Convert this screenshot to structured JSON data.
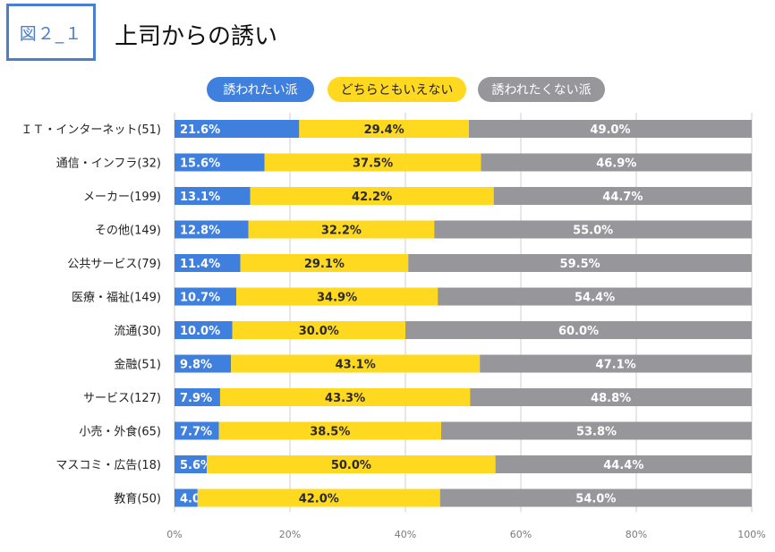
{
  "header": {
    "figure_label": "図２_１",
    "title": "上司からの誘い"
  },
  "colors": {
    "invited": "#3f7fde",
    "neutral": "#ffd820",
    "not_invited": "#97979b",
    "grid": "#cfcfcf",
    "badge": "#4a7fd0"
  },
  "chart_data": {
    "type": "bar",
    "orientation": "horizontal",
    "stacked": true,
    "percent": true,
    "title": "上司からの誘い",
    "xlim": [
      0,
      100
    ],
    "xticks": [
      "0%",
      "20%",
      "40%",
      "60%",
      "80%",
      "100%"
    ],
    "grid": true,
    "legend_position": "top",
    "categories": [
      "ＩＴ・インターネット(51)",
      "通信・インフラ(32)",
      "メーカー(199)",
      "その他(149)",
      "公共サービス(79)",
      "医療・福祉(149)",
      "流通(30)",
      "金融(51)",
      "サービス(127)",
      "小売・外食(65)",
      "マスコミ・広告(18)",
      "教育(50)"
    ],
    "series": [
      {
        "name": "誘われたい派",
        "values": [
          21.6,
          15.6,
          13.1,
          12.8,
          11.4,
          10.7,
          10.0,
          9.8,
          7.9,
          7.7,
          5.6,
          4.0
        ],
        "labels": [
          "21.6%",
          "15.6%",
          "13.1%",
          "12.8%",
          "11.4%",
          "10.7%",
          "10.0%",
          "9.8%",
          "7.9%",
          "7.7%",
          "5.6%",
          "4.0%"
        ]
      },
      {
        "name": "どちらともいえない",
        "values": [
          29.4,
          37.5,
          42.2,
          32.2,
          29.1,
          34.9,
          30.0,
          43.1,
          43.3,
          38.5,
          50.0,
          42.0
        ],
        "labels": [
          "29.4%",
          "37.5%",
          "42.2%",
          "32.2%",
          "29.1%",
          "34.9%",
          "30.0%",
          "43.1%",
          "43.3%",
          "38.5%",
          "50.0%",
          "42.0%"
        ]
      },
      {
        "name": "誘われたくない派",
        "values": [
          49.0,
          46.9,
          44.7,
          55.0,
          59.5,
          54.4,
          60.0,
          47.1,
          48.8,
          53.8,
          44.4,
          54.0
        ],
        "labels": [
          "49.0%",
          "46.9%",
          "44.7%",
          "55.0%",
          "59.5%",
          "54.4%",
          "60.0%",
          "47.1%",
          "48.8%",
          "53.8%",
          "44.4%",
          "54.0%"
        ]
      }
    ]
  }
}
